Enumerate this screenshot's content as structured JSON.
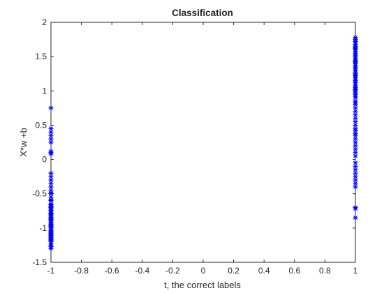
{
  "chart_data": {
    "type": "scatter",
    "title": "Classification",
    "xlabel": "t, the correct labels",
    "ylabel": "X*w +b",
    "xlim": [
      -1,
      1
    ],
    "ylim": [
      -1.5,
      2
    ],
    "xticks": [
      -1,
      -0.8,
      -0.6,
      -0.4,
      -0.2,
      0,
      0.2,
      0.4,
      0.6,
      0.8,
      1
    ],
    "xtick_labels": [
      "-1",
      "-0.8",
      "-0.6",
      "-0.4",
      "-0.2",
      "0",
      "0.2",
      "0.4",
      "0.6",
      "0.8",
      "1"
    ],
    "yticks": [
      -1.5,
      -1,
      -0.5,
      0,
      0.5,
      1,
      1.5,
      2
    ],
    "ytick_labels": [
      "-1.5",
      "-1",
      "-0.5",
      "0",
      "0.5",
      "1",
      "1.5",
      "2"
    ],
    "grid": false,
    "marker": "*",
    "color": "#0000ff",
    "series": [
      {
        "x": [
          -1,
          -1,
          -1,
          -1,
          -1,
          -1,
          -1,
          -1,
          -1,
          -1,
          -1,
          -1,
          -1,
          -1,
          -1,
          -1,
          -1,
          -1,
          -1,
          -1,
          -1,
          -1,
          -1,
          -1,
          -1,
          -1,
          -1,
          -1,
          -1,
          -1,
          -1,
          -1,
          -1,
          -1,
          -1,
          -1,
          -1,
          -1,
          -1,
          -1,
          -1,
          -1,
          -1,
          -1,
          -1,
          -1,
          -1,
          -1,
          -1,
          -1,
          -1,
          -1,
          -1,
          -1,
          -1,
          -1,
          -1,
          -1,
          -1,
          -1
        ],
        "y": [
          0.75,
          0.45,
          0.4,
          0.35,
          0.3,
          0.25,
          0.12,
          0.1,
          0.08,
          -0.2,
          -0.25,
          -0.3,
          -0.35,
          -0.4,
          -0.45,
          -0.5,
          -0.55,
          -0.6,
          -0.65,
          -0.68,
          -0.7,
          -0.72,
          -0.75,
          -0.78,
          -0.8,
          -0.82,
          -0.85,
          -0.87,
          -0.9,
          -0.92,
          -0.95,
          -0.97,
          -1.0,
          -1.02,
          -1.05,
          -1.07,
          -1.1,
          -1.12,
          -1.15,
          -1.17,
          -1.2,
          -1.22,
          -1.25,
          -1.3,
          -0.66,
          -0.74,
          -0.84,
          -0.94,
          -1.04,
          -1.14,
          -0.88,
          -0.98,
          -1.08,
          -1.18,
          -0.79,
          -0.69,
          -0.59,
          -0.49,
          -1.27,
          -1.11
        ]
      },
      {
        "x": [
          1,
          1,
          1,
          1,
          1,
          1,
          1,
          1,
          1,
          1,
          1,
          1,
          1,
          1,
          1,
          1,
          1,
          1,
          1,
          1,
          1,
          1,
          1,
          1,
          1,
          1,
          1,
          1,
          1,
          1,
          1,
          1,
          1,
          1,
          1,
          1,
          1,
          1,
          1,
          1,
          1,
          1,
          1,
          1,
          1,
          1,
          1,
          1,
          1,
          1,
          1,
          1,
          1,
          1,
          1,
          1,
          1,
          1,
          1,
          1,
          1,
          1,
          1,
          1,
          1,
          1,
          1,
          1,
          1,
          1
        ],
        "y": [
          1.78,
          1.75,
          1.72,
          1.7,
          1.68,
          1.65,
          1.62,
          1.6,
          1.57,
          1.55,
          1.52,
          1.5,
          1.47,
          1.45,
          1.42,
          1.4,
          1.37,
          1.35,
          1.32,
          1.3,
          1.27,
          1.25,
          1.22,
          1.2,
          1.17,
          1.15,
          1.12,
          1.1,
          1.07,
          1.05,
          1.02,
          1.0,
          0.97,
          0.95,
          0.92,
          0.9,
          0.85,
          0.8,
          0.75,
          0.7,
          0.65,
          0.6,
          0.55,
          0.5,
          0.45,
          0.42,
          0.38,
          0.35,
          0.3,
          0.25,
          0.2,
          0.15,
          0.1,
          0.05,
          -0.05,
          -0.1,
          -0.15,
          -0.2,
          -0.25,
          -0.3,
          -0.35,
          -0.4,
          -0.7,
          -0.72,
          -0.85,
          1.63,
          1.43,
          1.23,
          1.03,
          0.83
        ]
      }
    ]
  }
}
